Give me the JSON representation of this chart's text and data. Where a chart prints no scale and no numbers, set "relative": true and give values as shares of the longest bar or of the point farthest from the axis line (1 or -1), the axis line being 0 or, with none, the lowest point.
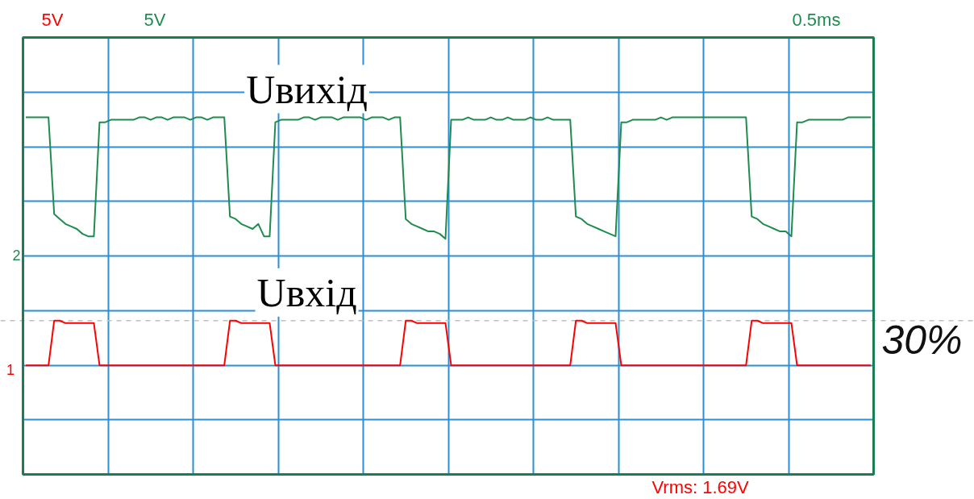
{
  "chart_data": {
    "type": "line",
    "relative": true,
    "grid": true,
    "tick_labels": false,
    "categories": [
      null,
      null,
      null,
      null,
      null,
      null,
      null,
      null,
      null,
      null,
      null,
      null,
      null,
      null,
      null,
      null,
      null,
      null,
      null,
      null,
      null,
      null,
      null,
      null,
      null,
      null,
      null,
      null,
      null,
      null,
      null,
      null,
      null,
      null,
      null,
      null,
      null,
      null,
      null,
      null,
      null,
      null,
      null,
      null,
      null,
      null,
      null,
      null,
      null,
      null,
      null,
      null,
      null,
      null,
      null,
      null,
      null,
      null,
      null,
      null,
      null,
      null,
      null,
      null,
      null,
      null,
      null,
      null,
      null,
      null,
      null,
      null,
      null,
      null,
      null,
      null,
      null,
      null,
      null,
      null,
      null,
      null,
      null,
      null,
      null,
      null,
      null,
      null,
      null,
      null,
      null,
      null,
      null,
      null,
      null,
      null,
      null,
      null,
      null,
      null,
      null,
      null,
      null,
      null,
      null,
      null,
      null,
      null,
      null,
      null,
      null,
      null,
      null,
      null,
      null,
      null,
      null,
      null,
      null,
      null,
      null,
      null,
      null,
      null,
      null,
      null,
      null,
      null,
      null,
      null,
      null,
      null,
      null,
      null,
      null,
      null,
      null,
      null,
      null,
      null,
      null,
      null,
      null,
      null,
      null,
      null,
      null,
      null,
      null,
      null
    ],
    "series": [
      {
        "name": "Uвихід",
        "color": "#1e8c4e",
        "values": [
          1.0,
          1.0,
          1.0,
          1.0,
          1.0,
          0.61,
          0.59,
          0.57,
          0.56,
          0.55,
          0.53,
          0.52,
          0.52,
          0.98,
          0.98,
          0.99,
          0.99,
          0.99,
          0.99,
          0.99,
          1.0,
          1.0,
          0.99,
          1.0,
          1.0,
          0.99,
          1.0,
          1.0,
          1.0,
          0.99,
          1.0,
          1.0,
          0.99,
          1.0,
          1.0,
          1.0,
          0.6,
          0.59,
          0.57,
          0.56,
          0.55,
          0.57,
          0.52,
          0.52,
          0.98,
          0.99,
          0.99,
          0.99,
          0.99,
          1.0,
          1.0,
          0.99,
          1.0,
          1.0,
          1.0,
          0.99,
          1.0,
          1.0,
          1.0,
          1.0,
          0.99,
          1.0,
          1.0,
          1.0,
          0.99,
          1.0,
          1.0,
          0.59,
          0.57,
          0.56,
          0.55,
          0.54,
          0.54,
          0.53,
          0.51,
          0.99,
          0.99,
          0.99,
          1.0,
          0.99,
          0.99,
          0.99,
          1.0,
          0.99,
          0.99,
          1.0,
          0.99,
          0.99,
          0.99,
          1.0,
          0.99,
          0.99,
          1.0,
          0.99,
          0.99,
          0.99,
          0.99,
          0.6,
          0.59,
          0.57,
          0.56,
          0.55,
          0.54,
          0.53,
          0.52,
          0.98,
          0.98,
          0.99,
          0.99,
          0.99,
          0.99,
          0.99,
          1.0,
          0.99,
          1.0,
          1.0,
          1.0,
          1.0,
          1.0,
          1.0,
          1.0,
          1.0,
          1.0,
          1.0,
          1.0,
          1.0,
          1.0,
          1.0,
          0.6,
          0.59,
          0.57,
          0.56,
          0.55,
          0.54,
          0.54,
          0.52,
          0.98,
          0.98,
          0.99,
          0.99,
          0.99,
          0.99,
          0.99,
          0.99,
          0.99,
          1.0,
          1.0,
          1.0,
          1.0,
          1.0
        ]
      },
      {
        "name": "Uвхід",
        "color": "#ff0000",
        "values": [
          0,
          0,
          0,
          0,
          0,
          0.18,
          0.18,
          0.17,
          0.17,
          0.17,
          0.17,
          0.17,
          0.17,
          0,
          0,
          0,
          0,
          0,
          0,
          0,
          0,
          0,
          0,
          0,
          0,
          0,
          0,
          0,
          0,
          0,
          0,
          0,
          0,
          0,
          0,
          0,
          0.18,
          0.18,
          0.17,
          0.17,
          0.17,
          0.17,
          0.17,
          0.17,
          0,
          0,
          0,
          0,
          0,
          0,
          0,
          0,
          0,
          0,
          0,
          0,
          0,
          0,
          0,
          0,
          0,
          0,
          0,
          0,
          0,
          0,
          0,
          0.18,
          0.18,
          0.17,
          0.17,
          0.17,
          0.17,
          0.17,
          0.17,
          0,
          0,
          0,
          0,
          0,
          0,
          0,
          0,
          0,
          0,
          0,
          0,
          0,
          0,
          0,
          0,
          0,
          0,
          0,
          0,
          0,
          0,
          0.18,
          0.18,
          0.17,
          0.17,
          0.17,
          0.17,
          0.17,
          0.17,
          0,
          0,
          0,
          0,
          0,
          0,
          0,
          0,
          0,
          0,
          0,
          0,
          0,
          0,
          0,
          0,
          0,
          0,
          0,
          0,
          0,
          0,
          0,
          0.18,
          0.18,
          0.17,
          0.17,
          0.17,
          0.17,
          0.17,
          0.17,
          0,
          0,
          0,
          0,
          0,
          0,
          0,
          0,
          0,
          0,
          0,
          0,
          0,
          0
        ]
      }
    ],
    "ref_lines": [
      {
        "axis": "y",
        "value": 0.18,
        "color": "#c0c0c0",
        "line_style": "dashed"
      }
    ],
    "annotations": [
      "5V",
      "5V",
      "0.5ms",
      "Vrms: 1.69V",
      "1",
      "2",
      "30%"
    ]
  }
}
